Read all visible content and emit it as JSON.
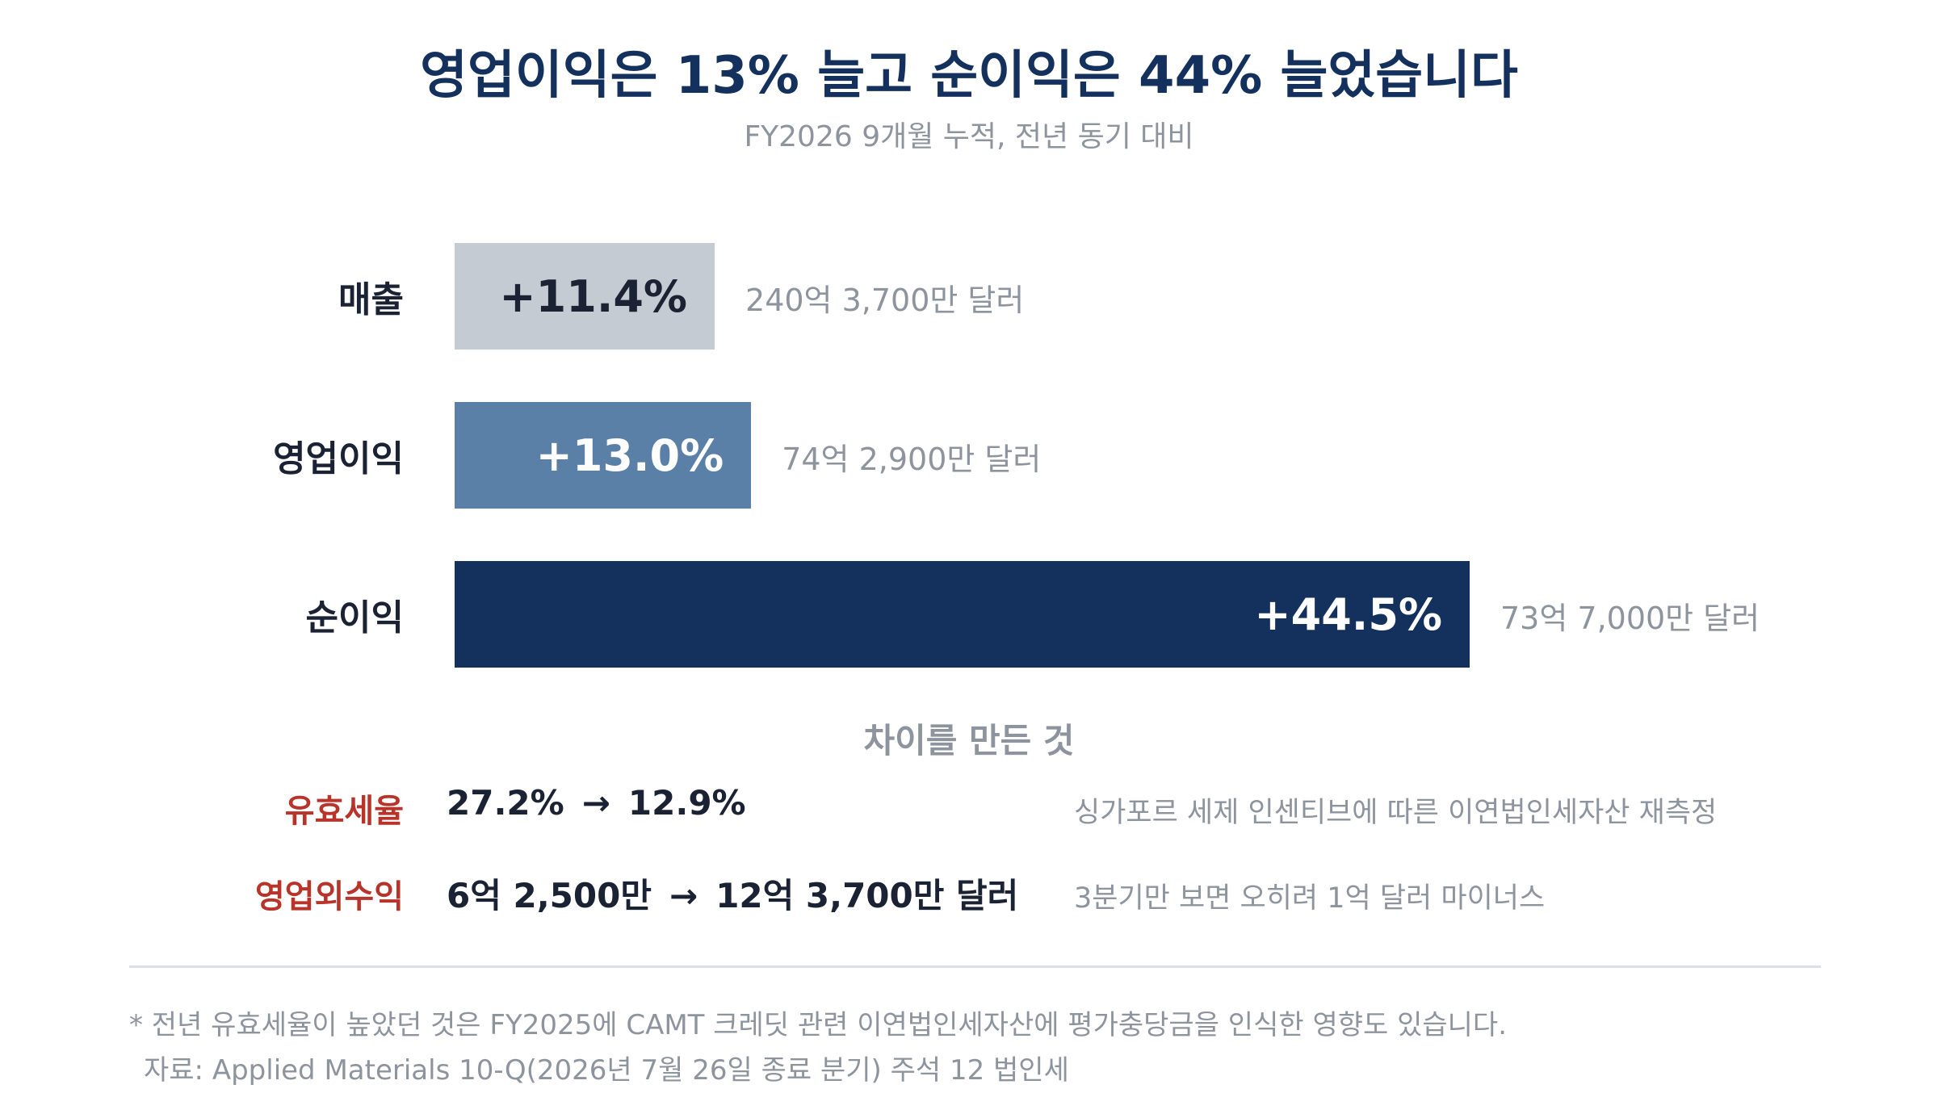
{
  "header": {
    "title": "영업이익은 13% 늘고 순이익은 44% 늘었습니다",
    "subtitle": "FY2026 9개월 누적, 전년 동기 대비"
  },
  "chart_data": {
    "type": "bar",
    "orientation": "horizontal",
    "categories": [
      "매출",
      "영업이익",
      "순이익"
    ],
    "values": [
      11.4,
      13.0,
      44.5
    ],
    "value_labels": [
      "+11.4%",
      "+13.0%",
      "+44.5%"
    ],
    "annotations": [
      "240억 3,700만 달러",
      "74억 2,900만 달러",
      "73억 7,000만 달러"
    ],
    "colors": [
      "#c5cbd3",
      "#5b80a8",
      "#13315c"
    ],
    "value_label_colors": [
      "#1a2233",
      "#ffffff",
      "#ffffff"
    ],
    "xlim": [
      0,
      44.5
    ],
    "grid": false
  },
  "drivers": {
    "title": "차이를 만든 것",
    "items": [
      {
        "name": "유효세율",
        "from": "27.2%",
        "arrow": "→",
        "to": "12.9%",
        "note": "싱가포르 세제 인센티브에 따른 이연법인세자산 재측정"
      },
      {
        "name": "영업외수익",
        "from": "6억 2,500만",
        "arrow": "→",
        "to": "12억 3,700만 달러",
        "note": "3분기만 보면 오히려 1억 달러 마이너스"
      }
    ]
  },
  "footer": {
    "note": "* 전년 유효세율이 높았던 것은 FY2025에 CAMT 크레딧 관련 이연법인세자산에 평가충당금을 인식한 영향도 있습니다.",
    "source": "자료: Applied Materials 10-Q(2026년 7월 26일 종료 분기) 주석 12 법인세"
  },
  "colors": {
    "title": "#13315c",
    "muted": "#8e949d",
    "accent_red": "#b8342a"
  }
}
